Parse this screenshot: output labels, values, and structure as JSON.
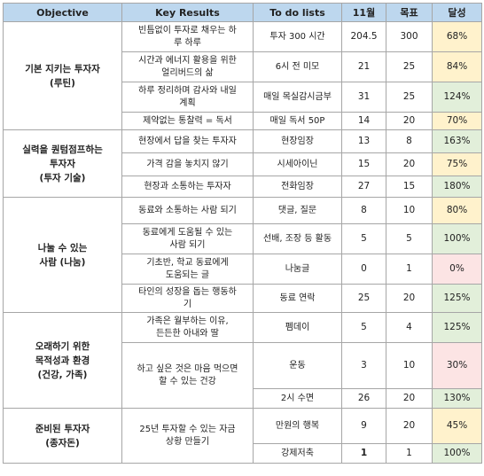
{
  "headers": {
    "objective": "Objective",
    "key_results": "Key Results",
    "todo": "To do lists",
    "nov": "11월",
    "target": "목표",
    "achieve": "달성"
  },
  "objectives": [
    {
      "line1": "기본 지키는 투자자",
      "line2": "(루틴)"
    },
    {
      "line1": "실력을 퀀텀점프하는",
      "line2": "투자자",
      "line3": "(투자 기술)"
    },
    {
      "line1": "나눌 수 있는",
      "line2": "사람 (나눔)"
    },
    {
      "line1": "오래하기 위한",
      "line2": "목적성과 환경",
      "line3": "(건강, 가족)"
    },
    {
      "line1": "준비된 투자자",
      "line2": "(종자돈)"
    }
  ],
  "key_results": [
    {
      "line1": "빈틈없이 투자로 채우는 하",
      "line2": "루 하루"
    },
    {
      "line1": "시간과 에너지 활용을 위한",
      "line2": "얼리버드의 삶"
    },
    {
      "line1": "하루 정리하며 감사와 내일",
      "line2": "계획"
    },
    {
      "line1": "제약없는 통찰력 = 독서"
    },
    {
      "line1": "현장에서 답을 찾는 투자자"
    },
    {
      "line1": "가격 감을 놓치지 않기"
    },
    {
      "line1": "현장과 소통하는 투자자"
    },
    {
      "line1": "동료와 소통하는 사람 되기"
    },
    {
      "line1": "동료에게 도움될 수 있는",
      "line2": "사람 되기"
    },
    {
      "line1": "기초반, 학교 동료에게",
      "line2": "도움되는 글"
    },
    {
      "line1": "타인의 성장을 돕는 행동하",
      "line2": "기"
    },
    {
      "line1": "가족은 월부하는 이유,",
      "line2": "든든한 아내와 딸"
    },
    {
      "line1": "하고 싶은 것은 마음 먹으면",
      "line2": "할 수 있는 건강"
    },
    {
      "line1": "25년 투자할 수 있는 자금",
      "line2": "상황 만들기"
    }
  ],
  "rows": [
    {
      "todo": "투자 300 시간",
      "nov": "204.5",
      "target": "300",
      "achieve": "68%"
    },
    {
      "todo": "6시 전 미모",
      "nov": "21",
      "target": "25",
      "achieve": "84%"
    },
    {
      "todo": "매일 목실감시금부",
      "nov": "31",
      "target": "25",
      "achieve": "124%"
    },
    {
      "todo": "매일 독서 50P",
      "nov": "14",
      "target": "20",
      "achieve": "70%"
    },
    {
      "todo": "현장임장",
      "nov": "13",
      "target": "8",
      "achieve": "163%"
    },
    {
      "todo": "시세아이닌",
      "nov": "15",
      "target": "20",
      "achieve": "75%"
    },
    {
      "todo": "전화임장",
      "nov": "27",
      "target": "15",
      "achieve": "180%"
    },
    {
      "todo": "댓글, 질문",
      "nov": "8",
      "target": "10",
      "achieve": "80%"
    },
    {
      "todo": "선배, 조장 등 활동",
      "nov": "5",
      "target": "5",
      "achieve": "100%"
    },
    {
      "todo": "나눔글",
      "nov": "0",
      "target": "1",
      "achieve": "0%"
    },
    {
      "todo": "동료 연락",
      "nov": "25",
      "target": "20",
      "achieve": "125%"
    },
    {
      "todo": "펨데이",
      "nov": "5",
      "target": "4",
      "achieve": "125%"
    },
    {
      "todo": "운동",
      "nov": "3",
      "target": "10",
      "achieve": "30%"
    },
    {
      "todo": "2시 수면",
      "nov": "26",
      "target": "20",
      "achieve": "130%"
    },
    {
      "todo": "만원의 행복",
      "nov": "9",
      "target": "20",
      "achieve": "45%"
    },
    {
      "todo": "강제저축",
      "nov": "1",
      "target": "1",
      "achieve": "100%"
    }
  ],
  "colors": {
    "header": "#bdd7ee",
    "below_target": "#fff2cc",
    "above_target": "#e2efda",
    "low": "#fce4e4"
  }
}
